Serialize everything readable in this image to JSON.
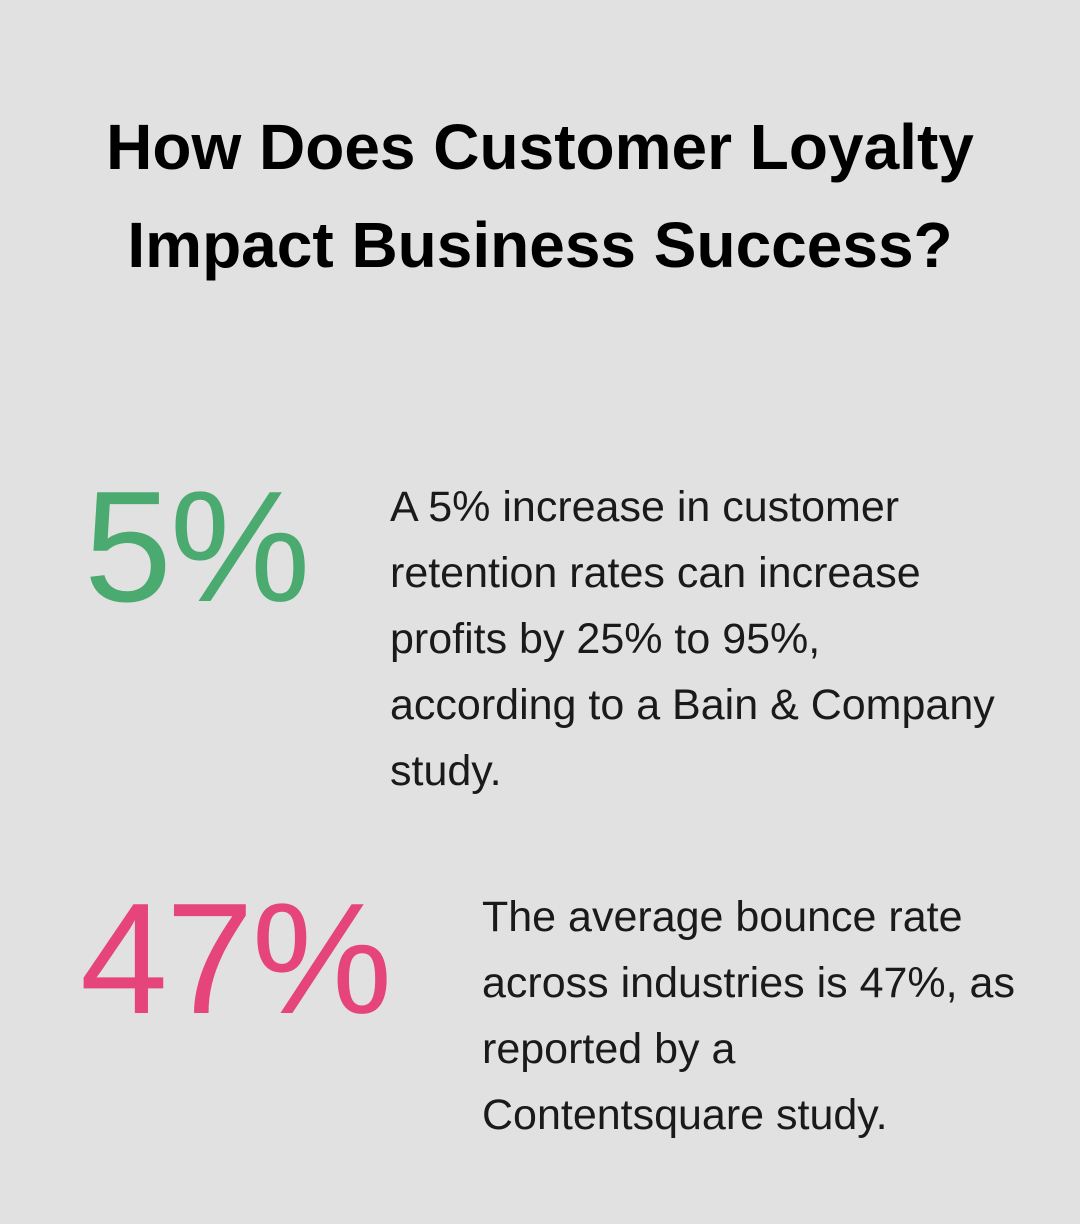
{
  "title": "How Does Customer Loyalty Impact Business Success?",
  "stats": [
    {
      "value": "5%",
      "color": "#4aaa70",
      "description": "A 5% increase in customer retention rates can increase profits by 25% to 95%, according to a Bain & Company study."
    },
    {
      "value": "47%",
      "color": "#e5457b",
      "description": "The average bounce rate across industries is 47%, as reported by a Contentsquare study."
    }
  ]
}
